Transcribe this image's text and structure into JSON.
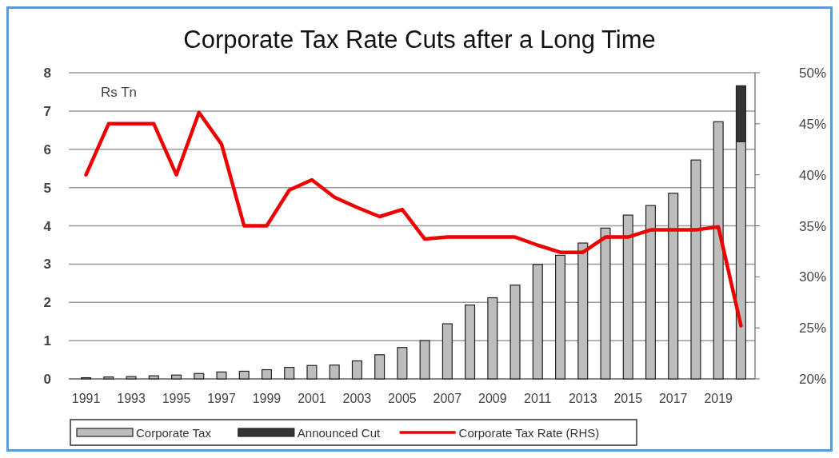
{
  "chart_data": {
    "type": "bar",
    "title": "Corporate Tax Rate Cuts after a Long Time",
    "ylabel": "Rs Tn",
    "stacked": true,
    "grid": "y",
    "legend": "bottom",
    "categories": [
      "1991",
      null,
      "1993",
      null,
      "1995",
      null,
      "1997",
      null,
      "1999",
      null,
      "2001",
      null,
      "2003",
      null,
      "2005",
      null,
      "2007",
      null,
      "2009",
      null,
      "2011",
      null,
      "2013",
      null,
      "2015",
      null,
      "2017",
      null,
      "2019",
      null
    ],
    "series": [
      {
        "name": "Corporate Tax",
        "color": "#bdbdbd",
        "values": [
          0.03,
          0.05,
          0.06,
          0.08,
          0.1,
          0.14,
          0.18,
          0.2,
          0.24,
          0.3,
          0.35,
          0.36,
          0.47,
          0.63,
          0.82,
          1.0,
          1.44,
          1.93,
          2.12,
          2.45,
          2.99,
          3.23,
          3.55,
          3.94,
          4.28,
          4.53,
          4.85,
          5.72,
          6.72,
          6.2
        ]
      },
      {
        "name": "Announced Cut",
        "color": "#333333",
        "values": [
          null,
          null,
          null,
          null,
          null,
          null,
          null,
          null,
          null,
          null,
          null,
          null,
          null,
          null,
          null,
          null,
          null,
          null,
          null,
          null,
          null,
          null,
          null,
          null,
          null,
          null,
          null,
          null,
          null,
          1.46
        ]
      },
      {
        "name": "Corporate Tax Rate (RHS)",
        "type": "line",
        "axis": "y2",
        "color": "#ee0000",
        "values": [
          40,
          45,
          45,
          45,
          40,
          46.1,
          43,
          35,
          35,
          38.5,
          39.5,
          37.8,
          36.8,
          35.9,
          36.6,
          33.7,
          33.9,
          33.9,
          33.9,
          33.9,
          33.1,
          32.4,
          32.4,
          33.9,
          33.9,
          34.6,
          34.6,
          34.6,
          34.9,
          25.2
        ]
      }
    ],
    "ylim": [
      0,
      8
    ],
    "yticks": [
      0,
      1,
      2,
      3,
      4,
      5,
      6,
      7,
      8
    ],
    "y2lim": [
      20,
      50
    ],
    "y2ticks": [
      {
        "value": 20,
        "label": "20%"
      },
      {
        "value": 25,
        "label": "25%"
      },
      {
        "value": 30,
        "label": "30%"
      },
      {
        "value": 35,
        "label": "35%"
      },
      {
        "value": 40,
        "label": "40%"
      },
      {
        "value": 45,
        "label": "45%"
      },
      {
        "value": 50,
        "label": "50%"
      }
    ]
  }
}
